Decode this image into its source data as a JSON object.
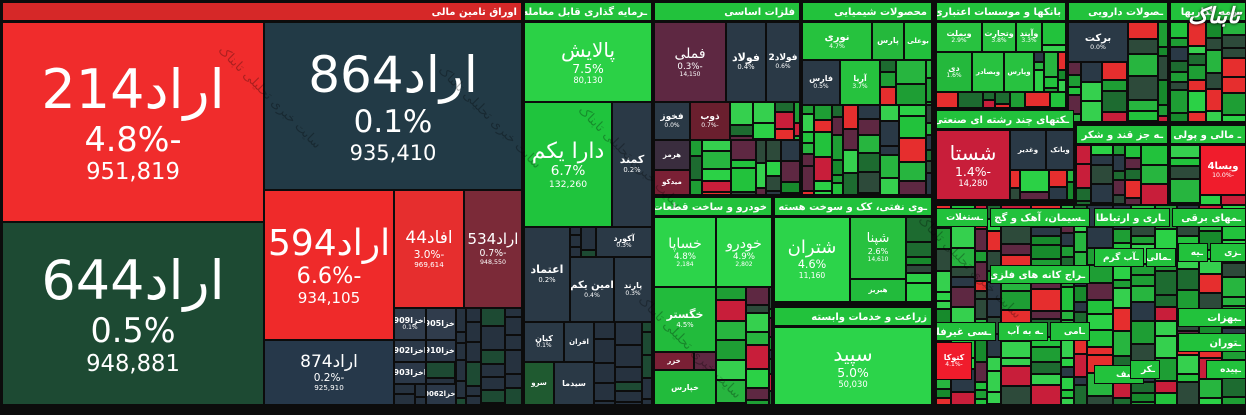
{
  "watermark": "تابناک",
  "watermark_diagonal": "سایت خبری تحلیلی تابناک",
  "sectors": [
    {
      "title": "اوراق تامین مالی",
      "tiles": [
        {
          "name": "اراد214",
          "change": "-4.8%",
          "volume": "951,819"
        },
        {
          "name": "اراد644",
          "change": "0.5%",
          "volume": "948,881"
        },
        {
          "name": "اراد864",
          "change": "0.1%",
          "volume": "935,410"
        },
        {
          "name": "اراد594",
          "change": "-6.6%",
          "volume": "934,105"
        },
        {
          "name": "افاد44",
          "change": "-3.0%",
          "volume": "969,614"
        },
        {
          "name": "اراد534",
          "change": "-0.7%",
          "volume": "948,550"
        },
        {
          "name": "اراد874",
          "change": "-0.2%",
          "volume": "925,910"
        },
        {
          "name": "اخزا909",
          "change": "0.1%"
        },
        {
          "name": "اخزا905"
        },
        {
          "name": "اخزا902"
        },
        {
          "name": "اخزا910"
        },
        {
          "name": "اخزا903"
        },
        {
          "name": "اخزا0062"
        }
      ]
    },
    {
      "title": "ـرمایه گذاری قابل معامله",
      "tiles": [
        {
          "name": "پالایش",
          "change": "7.5%",
          "volume": "80,130"
        },
        {
          "name": "دارا یکم",
          "change": "6.7%",
          "volume": "132,260"
        },
        {
          "name": "کمند",
          "change": "0.2%"
        },
        {
          "name": "اعتماد",
          "change": "0.2%"
        },
        {
          "name": "آکورد",
          "change": "0.3%"
        },
        {
          "name": "امین یکم",
          "change": "0.4%"
        },
        {
          "name": "پارند",
          "change": "0.3%"
        },
        {
          "name": "کیان",
          "change": "0.1%"
        },
        {
          "name": "افران"
        },
        {
          "name": "سرو"
        },
        {
          "name": "سیدما"
        }
      ]
    },
    {
      "title": "فلزات اساسی",
      "tiles": [
        {
          "name": "فملی",
          "change": "-0.3%",
          "volume": "14,150"
        },
        {
          "name": "فولاد",
          "change": "0.4%"
        },
        {
          "name": "فولاد2",
          "change": "0.6%"
        },
        {
          "name": "فخوز",
          "change": "0.0%"
        },
        {
          "name": "ذوب",
          "change": "-0.7%"
        },
        {
          "name": "هرمز"
        },
        {
          "name": "میدکو"
        }
      ]
    },
    {
      "title": "محصولات شیمیایی",
      "tiles": [
        {
          "name": "نوری",
          "change": "4.7%"
        },
        {
          "name": "پارس"
        },
        {
          "name": "بوعلی"
        },
        {
          "name": "فارس",
          "change": "0.5%"
        },
        {
          "name": "آریا",
          "change": "3.7%"
        }
      ]
    },
    {
      "title": "بانکها و موسسات اعتباری",
      "tiles": [
        {
          "name": "وبملت",
          "change": "2.9%"
        },
        {
          "name": "وتجارت",
          "change": "3.8%"
        },
        {
          "name": "وآیند",
          "change": "3.3%"
        },
        {
          "name": "دی",
          "change": "1.6%"
        },
        {
          "name": "وبصادر"
        },
        {
          "name": "وپارس"
        }
      ]
    },
    {
      "title": "ـصولات دارویی",
      "tiles": [
        {
          "name": "برکت",
          "change": "0.0%"
        }
      ]
    },
    {
      "title": "ـرمه گذاریها",
      "tiles": []
    },
    {
      "title": "ـکتهای چند رشته ای صنعتی",
      "tiles": [
        {
          "name": "شستا",
          "change": "-1.4%",
          "volume": "14,280"
        },
        {
          "name": "وغدیر"
        },
        {
          "name": "وبانک"
        }
      ]
    },
    {
      "title": "ـه جز قند و شکر",
      "tiles": []
    },
    {
      "title": "ـ مالی و پولی",
      "tiles": [
        {
          "name": "ویسا4",
          "change": "-10.0%"
        }
      ]
    },
    {
      "title": "خودرو و ساخت قطعات",
      "tiles": [
        {
          "name": "خساپا",
          "change": "4.8%",
          "volume": "2,184"
        },
        {
          "name": "خودرو",
          "change": "4.9%",
          "volume": "2,802"
        },
        {
          "name": "خگستر",
          "change": "4.5%"
        },
        {
          "name": "خزر"
        },
        {
          "name": "خپارس"
        }
      ]
    },
    {
      "title": "ـوی نفتی، کک و سوخت هسته ای",
      "tiles": [
        {
          "name": "شتران",
          "change": "4.6%",
          "volume": "11,160"
        },
        {
          "name": "شپنا",
          "change": "2.6%",
          "volume": "14,610"
        },
        {
          "name": "هبریز"
        }
      ]
    },
    {
      "title": "زراعت و خدمات وابسته",
      "tiles": [
        {
          "name": "سپید",
          "change": "5.0%",
          "volume": "50,030"
        }
      ]
    },
    {
      "title": "ـستغلات",
      "tiles": []
    },
    {
      "title": "ـسیمان، آهک و گچ",
      "tiles": []
    },
    {
      "title": "ـراج کانه های فلزی",
      "tiles": []
    },
    {
      "title": "ـسی غیرفلزی",
      "tiles": [
        {
          "name": "کتوکا",
          "change": "-4.1%"
        }
      ]
    },
    {
      "title": "ـه به آب",
      "tiles": []
    },
    {
      "title": "ـامی",
      "tiles": []
    },
    {
      "title": "ـاری و ارتباطات",
      "tiles": []
    },
    {
      "title": "ـمهای برقی",
      "tiles": []
    },
    {
      "title": "ـآب گرم",
      "tiles": []
    },
    {
      "title": "ـمالی",
      "tiles": []
    },
    {
      "title": "ـیه",
      "tiles": []
    },
    {
      "title": "ـزی",
      "tiles": []
    },
    {
      "title": "ـبهزات",
      "tiles": []
    },
    {
      "title": "ـتوران",
      "tiles": []
    },
    {
      "title": "ـشف",
      "tiles": []
    },
    {
      "title": "ـکر",
      "tiles": []
    },
    {
      "title": "ـپیده",
      "tiles": []
    }
  ]
}
